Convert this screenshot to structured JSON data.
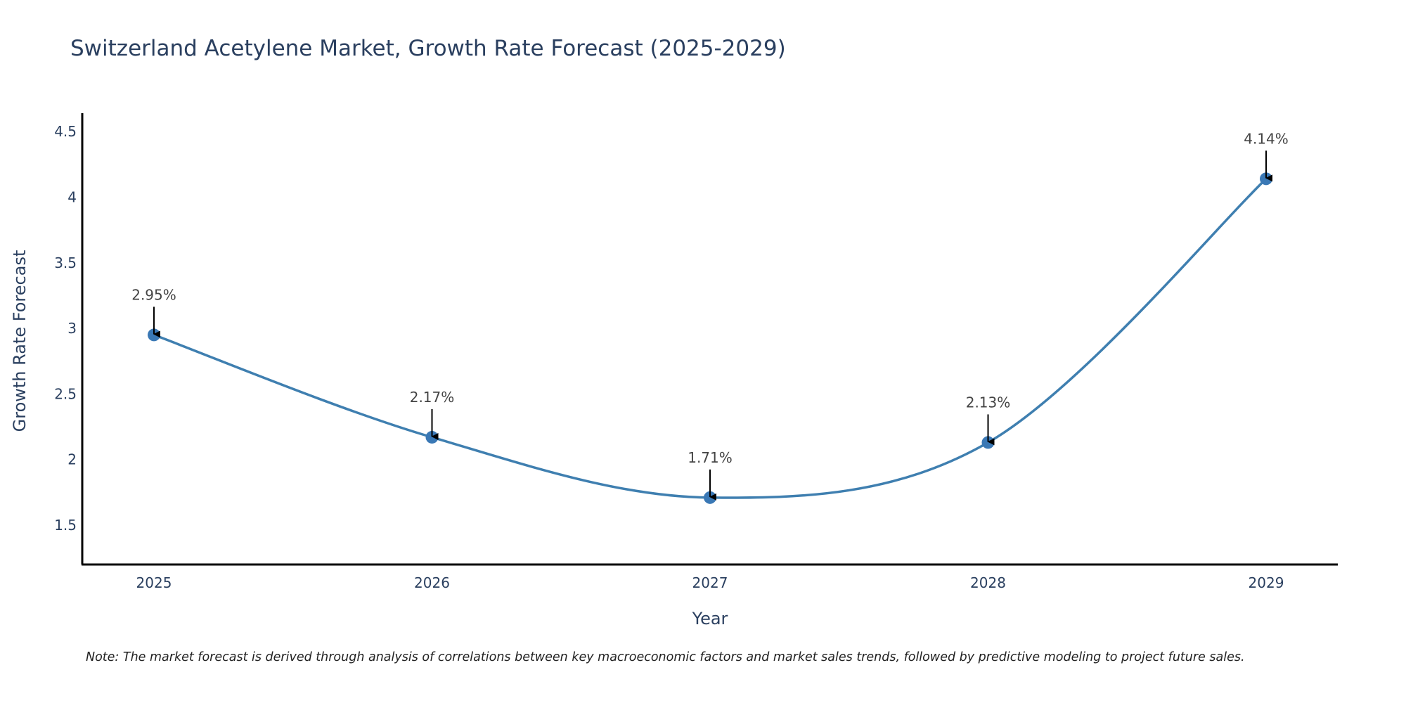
{
  "chart_data": {
    "type": "line",
    "title": "Switzerland Acetylene Market, Growth Rate Forecast (2025-2029)",
    "xlabel": "Year",
    "ylabel": "Growth Rate Forecast",
    "categories": [
      "2025",
      "2026",
      "2027",
      "2028",
      "2029"
    ],
    "series": [
      {
        "name": "Growth Rate Forecast",
        "values": [
          2.95,
          2.17,
          1.71,
          2.13,
          4.14
        ],
        "color": "#3f7fb0",
        "marker_color": "#3a78b5"
      }
    ],
    "data_labels": [
      "2.95%",
      "2.17%",
      "1.71%",
      "2.13%",
      "4.14%"
    ],
    "ylim": [
      1.2,
      4.64
    ],
    "yticks": [
      1.5,
      2,
      2.5,
      3,
      3.5,
      4,
      4.5
    ],
    "ytick_labels": [
      "1.5",
      "2",
      "2.5",
      "3",
      "3.5",
      "4",
      "4.5"
    ],
    "grid": false,
    "line_shape": "spline",
    "legend": "none",
    "note": "Note: The market forecast is derived through analysis of correlations between key macroeconomic factors and market sales trends, followed by predictive modeling to project future sales.",
    "colors": {
      "title": "#2a3f5f",
      "axis_line": "#000000",
      "annotation_text": "#444444",
      "arrow": "#000000"
    }
  }
}
